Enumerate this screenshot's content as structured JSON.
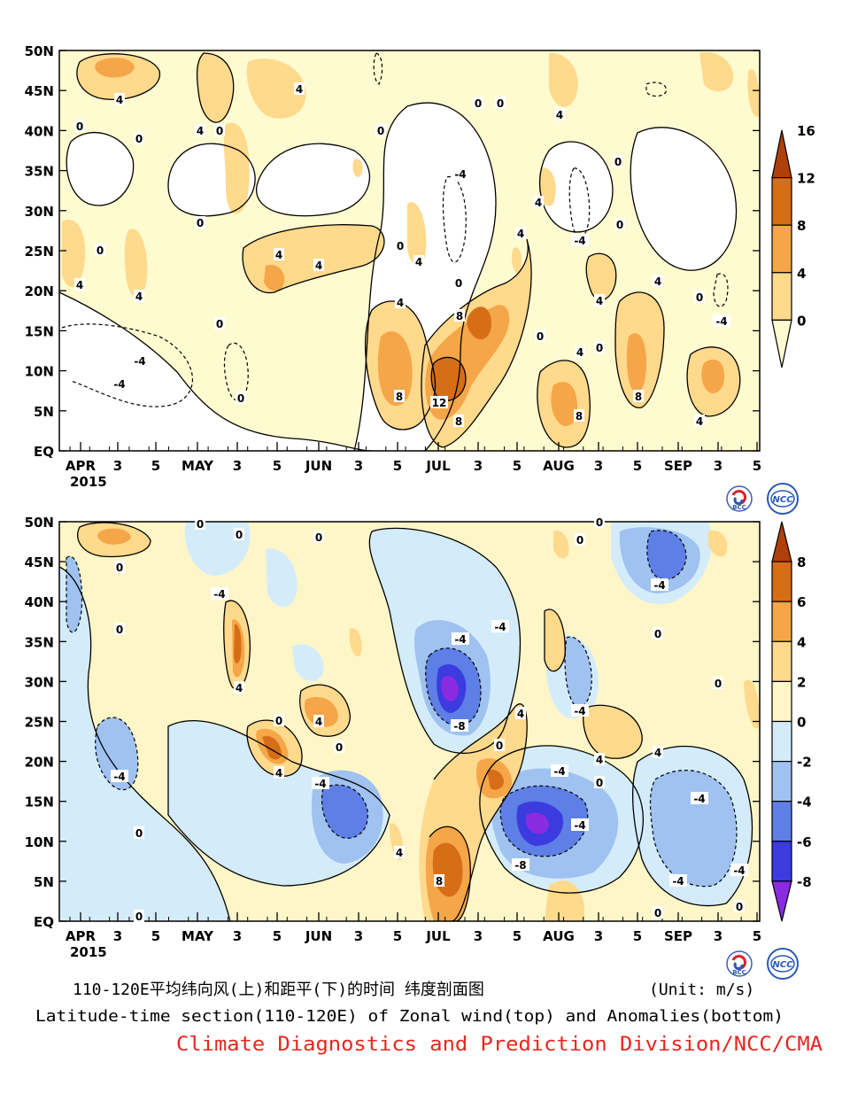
{
  "chart_data": [
    {
      "type": "heatmap",
      "name_cn": "",
      "x_axis": {
        "ticks": [
          "APR",
          "3",
          "5",
          "MAY",
          "3",
          "5",
          "JUN",
          "3",
          "5",
          "JUL",
          "3",
          "5",
          "AUG",
          "3",
          "5",
          "SEP",
          "3",
          "5"
        ],
        "year_label": "2015"
      },
      "y_axis": {
        "ticks": [
          "EQ",
          "5N",
          "10N",
          "15N",
          "20N",
          "25N",
          "30N",
          "35N",
          "40N",
          "45N",
          "50N"
        ],
        "range": [
          0,
          50
        ]
      },
      "colorbar": {
        "levels": [
          "0",
          "4",
          "8",
          "12",
          "16"
        ],
        "colors": [
          "#FFFBD0",
          "#FFD98C",
          "#F5A648",
          "#D66E18",
          "#B0400A"
        ]
      },
      "contour_labels": [
        "0",
        "4",
        "8",
        "12",
        "-4"
      ],
      "lagged_features": [
        {
          "label": "12",
          "x_pent": 10.8,
          "lat": 7.5
        },
        {
          "label": "8",
          "x_pent": 8.7,
          "lat": 9
        },
        {
          "label": "8",
          "x_pent": 11.2,
          "lat": 17
        },
        {
          "label": "8",
          "x_pent": 13.8,
          "lat": 8
        }
      ]
    },
    {
      "type": "heatmap",
      "x_axis": {
        "ticks": [
          "APR",
          "3",
          "5",
          "MAY",
          "3",
          "5",
          "JUN",
          "3",
          "5",
          "JUL",
          "3",
          "5",
          "AUG",
          "3",
          "5",
          "SEP",
          "3",
          "5"
        ],
        "year_label": "2015"
      },
      "y_axis": {
        "ticks": [
          "EQ",
          "5N",
          "10N",
          "15N",
          "20N",
          "25N",
          "30N",
          "35N",
          "40N",
          "45N",
          "50N"
        ],
        "range": [
          0,
          50
        ]
      },
      "colorbar": {
        "levels": [
          "-8",
          "-6",
          "-4",
          "-2",
          "0",
          "2",
          "4",
          "6",
          "8"
        ],
        "colors": [
          "#8A2BE2",
          "#3B3BE0",
          "#5E7FE6",
          "#9FC2F0",
          "#D4ECFA",
          "#FFF6C8",
          "#FFD98C",
          "#F5A648",
          "#D66E18",
          "#B0400A"
        ]
      },
      "contour_labels": [
        "0",
        "4",
        "8",
        "-4",
        "-8"
      ]
    }
  ],
  "caption": {
    "cn": "110-120E平均纬向风(上)和距平(下)的时间 纬度剖面图",
    "unit": "(Unit: m/s)",
    "en": "Latitude-time section(110-120E) of Zonal wind(top) and Anomalies(bottom)",
    "credit": "Climate Diagnostics and Prediction Division/NCC/CMA"
  },
  "logos": {
    "bcc": "BCC",
    "ncc": "NCC"
  },
  "colors": {
    "credit": "#E8251F",
    "axis": "#000000"
  }
}
